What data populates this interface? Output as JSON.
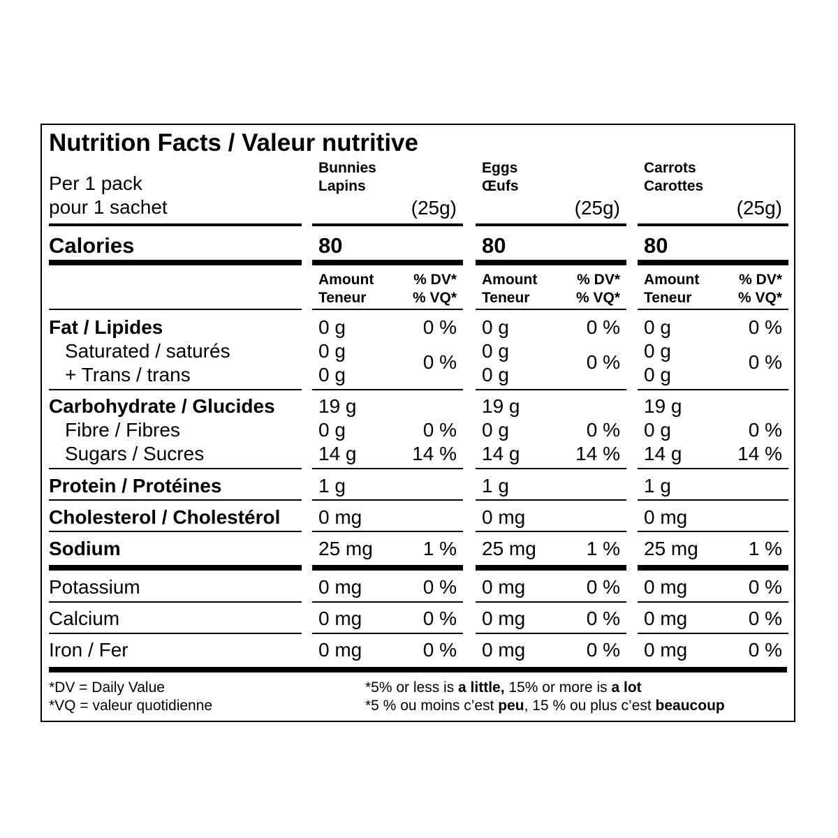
{
  "title": "Nutrition Facts / Valeur nutritive",
  "serving": {
    "en": "Per 1 pack",
    "fr": "pour 1 sachet"
  },
  "products": [
    {
      "en": "Bunnies",
      "fr": "Lapins",
      "size": "(25g)",
      "calories": "80",
      "fat": "0 g",
      "fat_dv": "0 %",
      "sat": "0 g",
      "trans": "0 g",
      "sat_trans_dv": "0 %",
      "carb": "19 g",
      "fibre": "0 g",
      "fibre_dv": "0 %",
      "sugars": "14 g",
      "sugars_dv": "14 %",
      "protein": "1 g",
      "cholesterol": "0 mg",
      "sodium": "25 mg",
      "sodium_dv": "1 %",
      "potassium": "0 mg",
      "potassium_dv": "0 %",
      "calcium": "0 mg",
      "calcium_dv": "0 %",
      "iron": "0 mg",
      "iron_dv": "0 %"
    },
    {
      "en": "Eggs",
      "fr": "Œufs",
      "size": "(25g)",
      "calories": "80",
      "fat": "0 g",
      "fat_dv": "0 %",
      "sat": "0 g",
      "trans": "0 g",
      "sat_trans_dv": "0 %",
      "carb": "19 g",
      "fibre": "0 g",
      "fibre_dv": "0 %",
      "sugars": "14 g",
      "sugars_dv": "14 %",
      "protein": "1 g",
      "cholesterol": "0 mg",
      "sodium": "25 mg",
      "sodium_dv": "1 %",
      "potassium": "0 mg",
      "potassium_dv": "0 %",
      "calcium": "0 mg",
      "calcium_dv": "0 %",
      "iron": "0 mg",
      "iron_dv": "0 %"
    },
    {
      "en": "Carrots",
      "fr": "Carottes",
      "size": "(25g)",
      "calories": "80",
      "fat": "0 g",
      "fat_dv": "0 %",
      "sat": "0 g",
      "trans": "0 g",
      "sat_trans_dv": "0 %",
      "carb": "19 g",
      "fibre": "0 g",
      "fibre_dv": "0 %",
      "sugars": "14 g",
      "sugars_dv": "14 %",
      "protein": "1 g",
      "cholesterol": "0 mg",
      "sodium": "25 mg",
      "sodium_dv": "1 %",
      "potassium": "0 mg",
      "potassium_dv": "0 %",
      "calcium": "0 mg",
      "calcium_dv": "0 %",
      "iron": "0 mg",
      "iron_dv": "0 %"
    }
  ],
  "labels": {
    "calories": "Calories",
    "amount": "Amount\nTeneur",
    "dv": "% DV*\n% VQ*",
    "fat": "Fat / Lipides",
    "saturated": "Saturated / saturés",
    "trans": "+ Trans / trans",
    "carb": "Carbohydrate / Glucides",
    "fibre": "Fibre / Fibres",
    "sugars": "Sugars / Sucres",
    "protein": "Protein / Protéines",
    "cholesterol": "Cholesterol / Cholestérol",
    "sodium": "Sodium",
    "potassium": "Potassium",
    "calcium": "Calcium",
    "iron": "Iron / Fer"
  },
  "footnote": {
    "dv": "*DV = Daily Value",
    "vq": "*VQ = valeur quotidienne",
    "en_1": "*5% or less is ",
    "en_2": "a little,",
    "en_3": " 15% or more is ",
    "en_4": "a lot",
    "fr_1": "*5 % ou moins c’est ",
    "fr_2": "peu",
    "fr_3": ", 15 % ou plus c’est ",
    "fr_4": "beaucoup"
  }
}
